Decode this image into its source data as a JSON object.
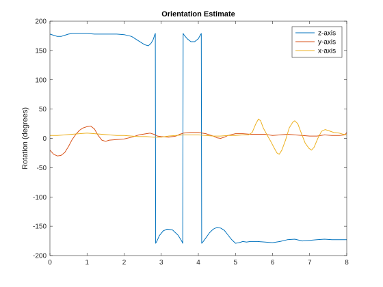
{
  "chart_data": {
    "type": "line",
    "title": "Orientation Estimate",
    "xlabel": "",
    "ylabel": "Rotation (degrees)",
    "xlim": [
      0,
      8
    ],
    "ylim": [
      -200,
      200
    ],
    "xticks": [
      0,
      1,
      2,
      3,
      4,
      5,
      6,
      7,
      8
    ],
    "yticks": [
      -200,
      -150,
      -100,
      -50,
      0,
      50,
      100,
      150,
      200
    ],
    "grid": false,
    "legend_position": "top-right",
    "series": [
      {
        "name": "z-axis",
        "color": "#0072BD",
        "points": [
          [
            0,
            178
          ],
          [
            0.1,
            176
          ],
          [
            0.2,
            174
          ],
          [
            0.3,
            174
          ],
          [
            0.4,
            176
          ],
          [
            0.5,
            178
          ],
          [
            0.6,
            179
          ],
          [
            0.8,
            179
          ],
          [
            1.0,
            179
          ],
          [
            1.2,
            178
          ],
          [
            1.5,
            178
          ],
          [
            1.8,
            178
          ],
          [
            2.0,
            177
          ],
          [
            2.2,
            174
          ],
          [
            2.4,
            166
          ],
          [
            2.55,
            160
          ],
          [
            2.65,
            158
          ],
          [
            2.72,
            162
          ],
          [
            2.78,
            168
          ],
          [
            2.82,
            176
          ],
          [
            2.84,
            179
          ],
          [
            2.85,
            -179
          ],
          [
            2.88,
            -176
          ],
          [
            2.95,
            -166
          ],
          [
            3.05,
            -158
          ],
          [
            3.15,
            -155
          ],
          [
            3.3,
            -156
          ],
          [
            3.45,
            -165
          ],
          [
            3.55,
            -175
          ],
          [
            3.58,
            -179
          ],
          [
            3.59,
            179
          ],
          [
            3.62,
            176
          ],
          [
            3.7,
            170
          ],
          [
            3.8,
            165
          ],
          [
            3.9,
            165
          ],
          [
            4.0,
            170
          ],
          [
            4.05,
            176
          ],
          [
            4.08,
            179
          ],
          [
            4.09,
            -179
          ],
          [
            4.12,
            -177
          ],
          [
            4.2,
            -170
          ],
          [
            4.3,
            -161
          ],
          [
            4.4,
            -155
          ],
          [
            4.5,
            -152
          ],
          [
            4.6,
            -153
          ],
          [
            4.7,
            -157
          ],
          [
            4.8,
            -165
          ],
          [
            4.9,
            -173
          ],
          [
            5.0,
            -179
          ],
          [
            5.1,
            -178
          ],
          [
            5.2,
            -176
          ],
          [
            5.3,
            -177
          ],
          [
            5.4,
            -176
          ],
          [
            5.6,
            -176
          ],
          [
            5.8,
            -177
          ],
          [
            6.0,
            -178
          ],
          [
            6.2,
            -176
          ],
          [
            6.4,
            -173
          ],
          [
            6.6,
            -172
          ],
          [
            6.8,
            -175
          ],
          [
            7.0,
            -174
          ],
          [
            7.2,
            -173
          ],
          [
            7.4,
            -172
          ],
          [
            7.6,
            -173
          ],
          [
            7.8,
            -173
          ],
          [
            8.0,
            -173
          ]
        ]
      },
      {
        "name": "y-axis",
        "color": "#D95319",
        "points": [
          [
            0,
            -20
          ],
          [
            0.1,
            -27
          ],
          [
            0.2,
            -30
          ],
          [
            0.3,
            -29
          ],
          [
            0.4,
            -24
          ],
          [
            0.5,
            -14
          ],
          [
            0.6,
            -2
          ],
          [
            0.7,
            7
          ],
          [
            0.8,
            14
          ],
          [
            0.9,
            18
          ],
          [
            1.0,
            20
          ],
          [
            1.1,
            21
          ],
          [
            1.2,
            16
          ],
          [
            1.3,
            5
          ],
          [
            1.4,
            -3
          ],
          [
            1.5,
            -5
          ],
          [
            1.6,
            -3
          ],
          [
            1.8,
            -2
          ],
          [
            2.0,
            -1
          ],
          [
            2.2,
            2
          ],
          [
            2.4,
            6
          ],
          [
            2.6,
            8
          ],
          [
            2.7,
            9
          ],
          [
            2.8,
            7
          ],
          [
            2.9,
            4
          ],
          [
            3.0,
            3
          ],
          [
            3.2,
            2
          ],
          [
            3.4,
            4
          ],
          [
            3.5,
            7
          ],
          [
            3.6,
            9
          ],
          [
            3.8,
            10
          ],
          [
            4.0,
            10
          ],
          [
            4.2,
            8
          ],
          [
            4.4,
            4
          ],
          [
            4.5,
            1
          ],
          [
            4.6,
            0
          ],
          [
            4.7,
            2
          ],
          [
            4.8,
            5
          ],
          [
            5.0,
            8
          ],
          [
            5.2,
            8
          ],
          [
            5.4,
            7
          ],
          [
            5.6,
            7
          ],
          [
            5.8,
            7
          ],
          [
            6.0,
            5
          ],
          [
            6.2,
            6
          ],
          [
            6.4,
            7
          ],
          [
            6.6,
            6
          ],
          [
            6.8,
            5
          ],
          [
            7.0,
            4
          ],
          [
            7.2,
            4
          ],
          [
            7.4,
            6
          ],
          [
            7.6,
            5
          ],
          [
            7.8,
            5
          ],
          [
            7.95,
            6
          ],
          [
            8.0,
            10
          ]
        ]
      },
      {
        "name": "x-axis",
        "color": "#EDB120",
        "points": [
          [
            0,
            5
          ],
          [
            0.2,
            5
          ],
          [
            0.4,
            6
          ],
          [
            0.6,
            7
          ],
          [
            0.8,
            8
          ],
          [
            1.0,
            9
          ],
          [
            1.2,
            8
          ],
          [
            1.4,
            7
          ],
          [
            1.6,
            6
          ],
          [
            1.8,
            5
          ],
          [
            2.0,
            5
          ],
          [
            2.2,
            4
          ],
          [
            2.4,
            3
          ],
          [
            2.6,
            3
          ],
          [
            2.8,
            2
          ],
          [
            3.0,
            2
          ],
          [
            3.2,
            4
          ],
          [
            3.4,
            5
          ],
          [
            3.6,
            6
          ],
          [
            3.8,
            6
          ],
          [
            4.0,
            6
          ],
          [
            4.2,
            5
          ],
          [
            4.4,
            4
          ],
          [
            4.6,
            4
          ],
          [
            4.8,
            5
          ],
          [
            5.0,
            5
          ],
          [
            5.2,
            6
          ],
          [
            5.35,
            6
          ],
          [
            5.45,
            10
          ],
          [
            5.55,
            25
          ],
          [
            5.62,
            33
          ],
          [
            5.68,
            30
          ],
          [
            5.75,
            18
          ],
          [
            5.85,
            6
          ],
          [
            5.95,
            -5
          ],
          [
            6.05,
            -17
          ],
          [
            6.12,
            -25
          ],
          [
            6.18,
            -27
          ],
          [
            6.25,
            -20
          ],
          [
            6.35,
            -3
          ],
          [
            6.45,
            18
          ],
          [
            6.55,
            28
          ],
          [
            6.6,
            30
          ],
          [
            6.68,
            25
          ],
          [
            6.78,
            8
          ],
          [
            6.88,
            -8
          ],
          [
            6.98,
            -17
          ],
          [
            7.05,
            -20
          ],
          [
            7.12,
            -15
          ],
          [
            7.22,
            0
          ],
          [
            7.32,
            12
          ],
          [
            7.42,
            15
          ],
          [
            7.52,
            13
          ],
          [
            7.65,
            10
          ],
          [
            7.8,
            9
          ],
          [
            7.9,
            7
          ],
          [
            8.0,
            6
          ]
        ]
      }
    ]
  }
}
